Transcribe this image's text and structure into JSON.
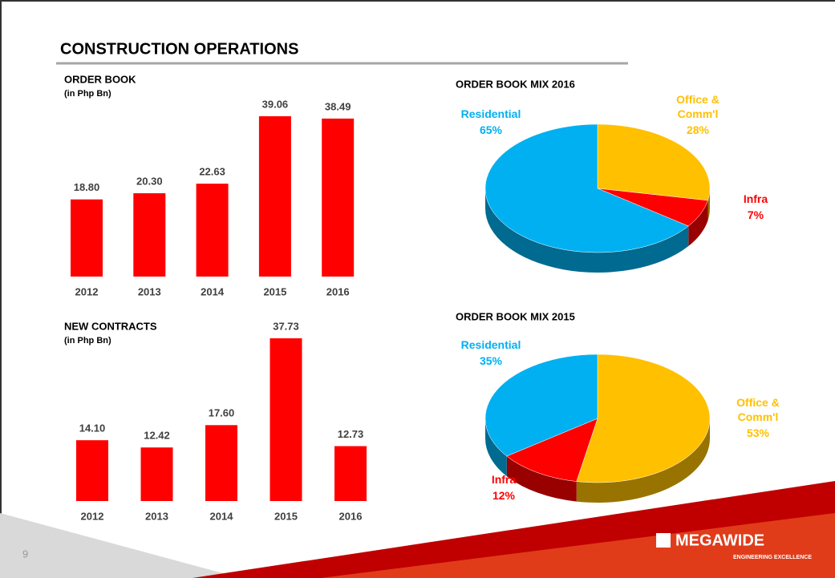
{
  "slide": {
    "title": "CONSTRUCTION OPERATIONS",
    "page_number": "9",
    "logo": "MEGAWIDE",
    "tagline": "ENGINEERING EXCELLENCE"
  },
  "chart_data": [
    {
      "type": "bar",
      "title": "ORDER BOOK",
      "subtitle": "(in Php Bn)",
      "color": "#ff0000",
      "categories": [
        "2012",
        "2013",
        "2014",
        "2015",
        "2016"
      ],
      "values": [
        18.8,
        20.3,
        22.63,
        39.06,
        38.49
      ],
      "value_labels": [
        "18.80",
        "20.30",
        "22.63",
        "39.06",
        "38.49"
      ]
    },
    {
      "type": "pie",
      "title": "ORDER BOOK MIX 2016",
      "categories": [
        "Office & Comm'l",
        "Infra",
        "Residential"
      ],
      "values": [
        28,
        7,
        65
      ],
      "value_labels": [
        "28%",
        "7%",
        "65%"
      ],
      "colors": [
        "#ffc000",
        "#ff0000",
        "#00b0f0"
      ]
    },
    {
      "type": "bar",
      "title": "NEW CONTRACTS",
      "subtitle": "(in Php Bn)",
      "color": "#ff0000",
      "categories": [
        "2012",
        "2013",
        "2014",
        "2015",
        "2016"
      ],
      "values": [
        14.1,
        12.42,
        17.6,
        37.73,
        12.73
      ],
      "value_labels": [
        "14.10",
        "12.42",
        "17.60",
        "37.73",
        "12.73"
      ]
    },
    {
      "type": "pie",
      "title": "ORDER BOOK MIX 2015",
      "categories": [
        "Office & Comm'l",
        "Infra",
        "Residential"
      ],
      "values": [
        53,
        12,
        35
      ],
      "value_labels": [
        "53%",
        "12%",
        "35%"
      ],
      "colors": [
        "#ffc000",
        "#ff0000",
        "#00b0f0"
      ]
    }
  ]
}
